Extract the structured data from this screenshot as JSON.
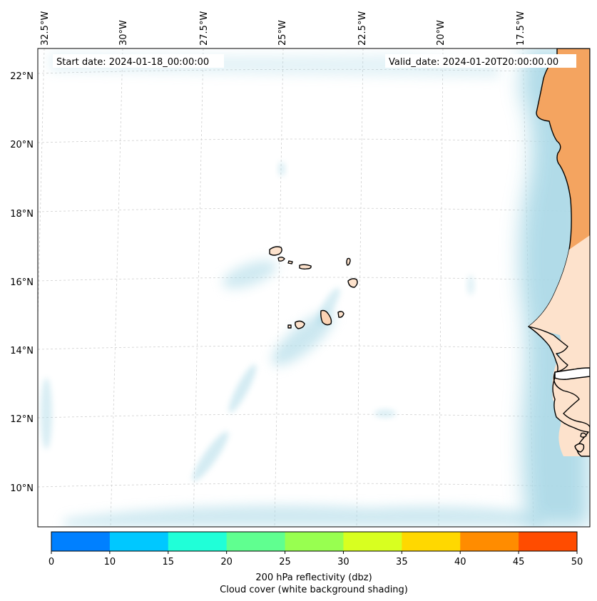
{
  "map": {
    "start_date": "Start date: 2024-01-18_00:00:00",
    "valid_date": "Valid_date: 2024-01-20T20:00:00.00",
    "lon_labels": [
      "32.5°W",
      "30°W",
      "27.5°W",
      "25°W",
      "22.5°W",
      "20°W",
      "17.5°W"
    ],
    "lat_labels": [
      "22°N",
      "20°N",
      "18°N",
      "16°N",
      "14°N",
      "12°N",
      "10°N"
    ],
    "land_color": "#f4a460",
    "light_land_color": "#fbd3b4",
    "cloud_color": "#a9d8e6"
  },
  "colorbar": {
    "ticks": [
      "0",
      "10",
      "15",
      "20",
      "25",
      "30",
      "35",
      "40",
      "45",
      "50"
    ],
    "colors": [
      "#0080ff",
      "#00c8ff",
      "#20ffd8",
      "#60ff90",
      "#98ff50",
      "#d8ff20",
      "#ffd800",
      "#ff8c00",
      "#ff4c00"
    ],
    "label_line1": "200 hPa reflectivity (dbz)",
    "label_line2": "Cloud cover (white background shading)"
  }
}
